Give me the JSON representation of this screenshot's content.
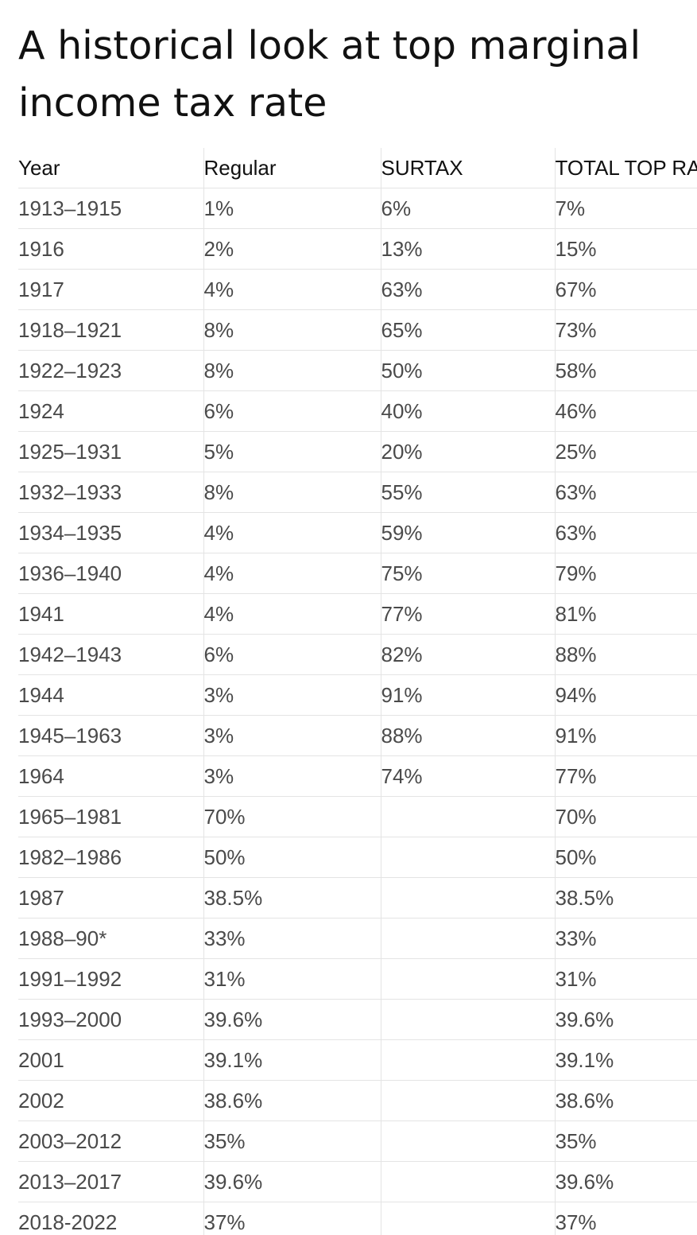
{
  "title": "A historical look at top marginal income tax rate",
  "table": {
    "columns": [
      "Year",
      "Regular",
      "SURTAX",
      "TOTAL TOP RATE"
    ],
    "rows": [
      [
        "1913–1915",
        "1%",
        "6%",
        "7%"
      ],
      [
        "1916",
        "2%",
        "13%",
        "15%"
      ],
      [
        "1917",
        "4%",
        "63%",
        "67%"
      ],
      [
        "1918–1921",
        "8%",
        "65%",
        "73%"
      ],
      [
        "1922–1923",
        "8%",
        "50%",
        "58%"
      ],
      [
        "1924",
        "6%",
        "40%",
        "46%"
      ],
      [
        "1925–1931",
        "5%",
        "20%",
        "25%"
      ],
      [
        "1932–1933",
        "8%",
        "55%",
        "63%"
      ],
      [
        "1934–1935",
        "4%",
        "59%",
        "63%"
      ],
      [
        "1936–1940",
        "4%",
        "75%",
        "79%"
      ],
      [
        "1941",
        "4%",
        "77%",
        "81%"
      ],
      [
        "1942–1943",
        "6%",
        "82%",
        "88%"
      ],
      [
        "1944",
        "3%",
        "91%",
        "94%"
      ],
      [
        "1945–1963",
        "3%",
        "88%",
        "91%"
      ],
      [
        "1964",
        "3%",
        "74%",
        "77%"
      ],
      [
        "1965–1981",
        "70%",
        "",
        "70%"
      ],
      [
        "1982–1986",
        "50%",
        "",
        "50%"
      ],
      [
        "1987",
        "38.5%",
        "",
        "38.5%"
      ],
      [
        "1988–90*",
        "33%",
        "",
        "33%"
      ],
      [
        "1991–1992",
        "31%",
        "",
        "31%"
      ],
      [
        "1993–2000",
        "39.6%",
        "",
        "39.6%"
      ],
      [
        "2001",
        "39.1%",
        "",
        "39.1%"
      ],
      [
        "2002",
        "38.6%",
        "",
        "38.6%"
      ],
      [
        "2003–2012",
        "35%",
        "",
        "35%"
      ],
      [
        "2013–2017",
        "39.6%",
        "",
        "39.6%"
      ],
      [
        "2018-2022",
        "37%",
        "",
        "37%"
      ]
    ]
  }
}
